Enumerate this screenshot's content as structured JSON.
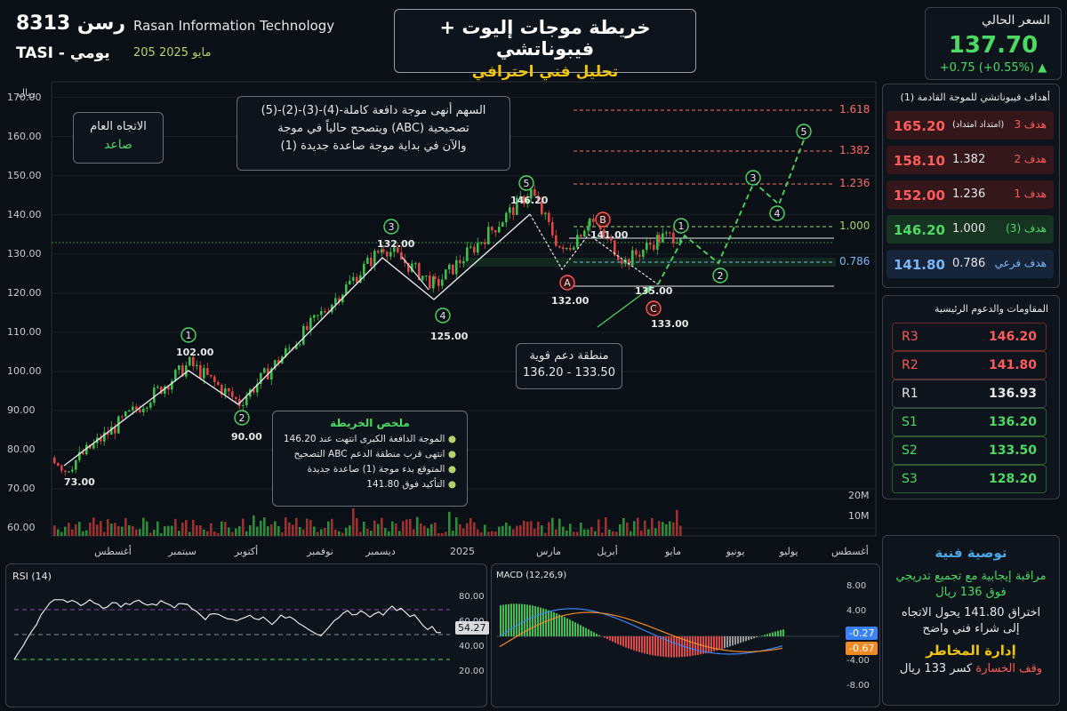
{
  "header": {
    "code": "رسن 8313",
    "company": "Rasan Information Technology",
    "market": "TASI - يومي",
    "date": "205 مايو 2025"
  },
  "title": {
    "main": "خريطة موجات إليوت + فيبوناتشي",
    "sub": "تحليل فني احترافي"
  },
  "price": {
    "label": "السعر الحالي",
    "value": "137.70",
    "change": "+0.75 (+0.55%)",
    "arrow": "▲"
  },
  "targets": {
    "title": "أهداف فيبوناتشي للموجة القادمة (1)",
    "rows": [
      {
        "label": "هدف 3",
        "ratio": "(امتداد امتداد)",
        "value": "165.20",
        "color": "#ff5b5b"
      },
      {
        "label": "هدف 2",
        "ratio": "1.382",
        "value": "158.10",
        "color": "#ff5b5b"
      },
      {
        "label": "هدف 1",
        "ratio": "1.236",
        "value": "152.00",
        "color": "#ff5b5b"
      },
      {
        "label": "هدف (3)",
        "ratio": "1.000",
        "value": "146.20",
        "color": "#4cd964"
      },
      {
        "label": "هدف فرعي",
        "ratio": "0.786",
        "value": "141.80",
        "color": "#7ab8f5"
      }
    ]
  },
  "levels": {
    "title": "المقاومات والدعوم الرئيسية",
    "rows": [
      {
        "label": "R3",
        "value": "146.20",
        "color": "#ff5b5b"
      },
      {
        "label": "R2",
        "value": "141.80",
        "color": "#ff5b5b"
      },
      {
        "label": "R1",
        "value": "136.93",
        "color": "#e6e8ea"
      },
      {
        "label": "S1",
        "value": "136.20",
        "color": "#4cd964"
      },
      {
        "label": "S2",
        "value": "133.50",
        "color": "#4cd964"
      },
      {
        "label": "S3",
        "value": "128.20",
        "color": "#4cd964"
      }
    ]
  },
  "recommendation": {
    "title": "توصية فنية",
    "line1": "مراقبة إيجابية مع تجميع تدريجي",
    "line2": "فوق 136 ريال",
    "line3": "اختراق 141.80 يحول الاتجاه",
    "line4": "إلى شراء فني واضح",
    "risk_title": "إدارة المخاطر",
    "risk_label": "وقف الخسارة",
    "risk_text": "كسر 133 ريال"
  },
  "chart": {
    "unit": "ريال",
    "trend_label": "الاتجاه العام",
    "trend_value": "صاعد",
    "note_line1": "السهم أنهى موجة دافعة كاملة-(4)-(3)-(2)-(5)",
    "note_line2": "ويتصحح حالياً في موجة (ABC) تصحيحية",
    "note_line3": "والآن في بداية موجة صاعدة جديدة  (1)",
    "support_label": "منطقة دعم قوية",
    "support_range": "136.20 - 133.50",
    "summary_title": "ملخص الخريطة",
    "summary_items": [
      "الموجة الدافعة الكبرى انتهت عند 146.20",
      "التصحيح ABC انتهى قرب منطقة الدعم",
      "المتوقع بدء موجة (1) صاعدة جديدة",
      "التأكيد فوق 141.80"
    ],
    "vol_20m": "20M",
    "vol_10m": "10M",
    "fib_labels": [
      "1.618",
      "1.382",
      "1.236",
      "1.000",
      "0.786"
    ],
    "price_labels": [
      "73.00",
      "102.00",
      "90.00",
      "132.00",
      "125.00",
      "146.20",
      "141.00",
      "132.00",
      "135.00",
      "133.00"
    ],
    "wave_labels": [
      "1",
      "2",
      "3",
      "4",
      "5",
      "A",
      "B",
      "C",
      "1",
      "2",
      "3",
      "4",
      "5"
    ]
  },
  "chart_data": {
    "type": "line",
    "title": "خريطة موجات إليوت + فيبوناتشي",
    "ylabel": "ريال",
    "ylim": [
      58,
      174
    ],
    "y_ticks": [
      "170.00",
      "160.00",
      "150.00",
      "140.00",
      "130.00",
      "120.00",
      "110.00",
      "100.00",
      "90.00",
      "80.00",
      "70.00",
      "60.00"
    ],
    "x_ticks": [
      "أغسطس",
      "سبتمبر",
      "أكتوبر",
      "نوفمبر",
      "ديسمبر",
      "2025",
      "مارس",
      "أبريل",
      "مايو",
      "يونيو",
      "يوليو",
      "أغسطس"
    ],
    "wave_points": [
      {
        "label": "start",
        "value": 73.0
      },
      {
        "label": "1",
        "value": 102.0
      },
      {
        "label": "2",
        "value": 90.0
      },
      {
        "label": "3",
        "value": 132.0
      },
      {
        "label": "4",
        "value": 125.0
      },
      {
        "label": "5",
        "value": 146.2
      },
      {
        "label": "A",
        "value": 132.0
      },
      {
        "label": "B",
        "value": 141.0
      },
      {
        "label": "C",
        "value": 133.0
      }
    ],
    "fib_levels": [
      {
        "ratio": "1.618",
        "value": 165.2
      },
      {
        "ratio": "1.382",
        "value": 158.1
      },
      {
        "ratio": "1.236",
        "value": 152.0
      },
      {
        "ratio": "1.000",
        "value": 146.2
      },
      {
        "ratio": "0.786",
        "value": 141.8
      }
    ],
    "rsi": {
      "label": "RSI (14)",
      "current": "54.27",
      "ticks": [
        "80.00",
        "60.00",
        "40.00",
        "20.00"
      ],
      "ylim": [
        0,
        100
      ]
    },
    "macd": {
      "label": "MACD (12,26,9)",
      "ticks": [
        "8.00",
        "4.00",
        "-4.00",
        "-8.00"
      ],
      "value1": "-0.27",
      "value2": "-0.67",
      "ylim": [
        -10,
        10
      ]
    }
  },
  "colors": {
    "up": "#4cd964",
    "down": "#ff5b5b",
    "accent_blue": "#4ea8e8",
    "gold": "#f1c40f"
  }
}
